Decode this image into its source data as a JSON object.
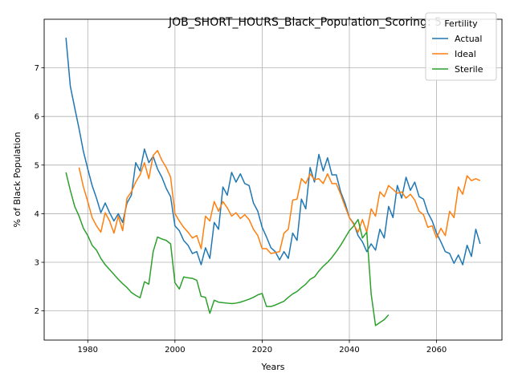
{
  "chart_data": {
    "type": "line",
    "title": "JOB_SHORT_HOURS_Black_Population_Scoring: 5",
    "xlabel": "Years",
    "ylabel": "% of Black Population",
    "xlim": [
      1970,
      2075
    ],
    "ylim": [
      1.4,
      8.0
    ],
    "xticks": [
      1980,
      2000,
      2020,
      2040,
      2060
    ],
    "yticks": [
      2,
      3,
      4,
      5,
      6,
      7
    ],
    "grid": true,
    "legend": {
      "title": "Fertility",
      "placement": "top-right"
    },
    "series": [
      {
        "name": "Actual",
        "color": "#1f77b4",
        "points": [
          [
            1975,
            7.62
          ],
          [
            1976,
            6.62
          ],
          [
            1977,
            6.18
          ],
          [
            1978,
            5.75
          ],
          [
            1979,
            5.28
          ],
          [
            1980,
            4.92
          ],
          [
            1981,
            4.58
          ],
          [
            1982,
            4.32
          ],
          [
            1983,
            4.02
          ],
          [
            1984,
            4.22
          ],
          [
            1985,
            4.02
          ],
          [
            1986,
            3.85
          ],
          [
            1987,
            4.0
          ],
          [
            1988,
            3.82
          ],
          [
            1989,
            4.22
          ],
          [
            1990,
            4.38
          ],
          [
            1991,
            5.05
          ],
          [
            1992,
            4.88
          ],
          [
            1993,
            5.33
          ],
          [
            1994,
            5.05
          ],
          [
            1995,
            5.18
          ],
          [
            1996,
            4.92
          ],
          [
            1997,
            4.75
          ],
          [
            1998,
            4.52
          ],
          [
            1999,
            4.35
          ],
          [
            2000,
            3.75
          ],
          [
            2001,
            3.65
          ],
          [
            2002,
            3.45
          ],
          [
            2003,
            3.35
          ],
          [
            2004,
            3.18
          ],
          [
            2005,
            3.22
          ],
          [
            2006,
            2.95
          ],
          [
            2007,
            3.3
          ],
          [
            2008,
            3.08
          ],
          [
            2009,
            3.82
          ],
          [
            2010,
            3.68
          ],
          [
            2011,
            4.55
          ],
          [
            2012,
            4.38
          ],
          [
            2013,
            4.85
          ],
          [
            2014,
            4.65
          ],
          [
            2015,
            4.82
          ],
          [
            2016,
            4.62
          ],
          [
            2017,
            4.58
          ],
          [
            2018,
            4.22
          ],
          [
            2019,
            4.05
          ],
          [
            2020,
            3.72
          ],
          [
            2021,
            3.52
          ],
          [
            2022,
            3.3
          ],
          [
            2023,
            3.22
          ],
          [
            2024,
            3.05
          ],
          [
            2025,
            3.22
          ],
          [
            2026,
            3.08
          ],
          [
            2027,
            3.6
          ],
          [
            2028,
            3.45
          ],
          [
            2029,
            4.3
          ],
          [
            2030,
            4.1
          ],
          [
            2031,
            4.95
          ],
          [
            2032,
            4.65
          ],
          [
            2033,
            5.22
          ],
          [
            2034,
            4.88
          ],
          [
            2035,
            5.15
          ],
          [
            2036,
            4.8
          ],
          [
            2037,
            4.8
          ],
          [
            2038,
            4.45
          ],
          [
            2039,
            4.22
          ],
          [
            2040,
            3.92
          ],
          [
            2041,
            3.8
          ],
          [
            2042,
            3.55
          ],
          [
            2043,
            3.42
          ],
          [
            2044,
            3.22
          ],
          [
            2045,
            3.38
          ],
          [
            2046,
            3.25
          ],
          [
            2047,
            3.68
          ],
          [
            2048,
            3.5
          ],
          [
            2049,
            4.15
          ],
          [
            2050,
            3.92
          ],
          [
            2051,
            4.58
          ],
          [
            2052,
            4.32
          ],
          [
            2053,
            4.75
          ],
          [
            2054,
            4.48
          ],
          [
            2055,
            4.65
          ],
          [
            2056,
            4.35
          ],
          [
            2057,
            4.3
          ],
          [
            2058,
            4.02
          ],
          [
            2059,
            3.85
          ],
          [
            2060,
            3.6
          ],
          [
            2061,
            3.42
          ],
          [
            2062,
            3.22
          ],
          [
            2063,
            3.18
          ],
          [
            2064,
            2.98
          ],
          [
            2065,
            3.15
          ],
          [
            2066,
            2.95
          ],
          [
            2067,
            3.35
          ],
          [
            2068,
            3.12
          ],
          [
            2069,
            3.68
          ],
          [
            2070,
            3.38
          ]
        ]
      },
      {
        "name": "Ideal",
        "color": "#ff7f0e",
        "points": [
          [
            1978,
            4.95
          ],
          [
            1979,
            4.55
          ],
          [
            1980,
            4.25
          ],
          [
            1981,
            3.92
          ],
          [
            1982,
            3.75
          ],
          [
            1983,
            3.62
          ],
          [
            1984,
            4.02
          ],
          [
            1985,
            3.85
          ],
          [
            1986,
            3.6
          ],
          [
            1987,
            3.95
          ],
          [
            1988,
            3.65
          ],
          [
            1989,
            4.32
          ],
          [
            1990,
            4.45
          ],
          [
            1991,
            4.65
          ],
          [
            1992,
            4.8
          ],
          [
            1993,
            5.05
          ],
          [
            1994,
            4.72
          ],
          [
            1995,
            5.2
          ],
          [
            1996,
            5.3
          ],
          [
            1997,
            5.1
          ],
          [
            1998,
            4.95
          ],
          [
            1999,
            4.75
          ],
          [
            2000,
            4.0
          ],
          [
            2001,
            3.85
          ],
          [
            2002,
            3.72
          ],
          [
            2003,
            3.62
          ],
          [
            2004,
            3.5
          ],
          [
            2005,
            3.55
          ],
          [
            2006,
            3.28
          ],
          [
            2007,
            3.95
          ],
          [
            2008,
            3.85
          ],
          [
            2009,
            4.25
          ],
          [
            2010,
            4.05
          ],
          [
            2011,
            4.25
          ],
          [
            2012,
            4.12
          ],
          [
            2013,
            3.95
          ],
          [
            2014,
            4.02
          ],
          [
            2015,
            3.9
          ],
          [
            2016,
            3.98
          ],
          [
            2017,
            3.88
          ],
          [
            2018,
            3.68
          ],
          [
            2019,
            3.55
          ],
          [
            2020,
            3.28
          ],
          [
            2021,
            3.28
          ],
          [
            2022,
            3.18
          ],
          [
            2023,
            3.2
          ],
          [
            2024,
            3.22
          ],
          [
            2025,
            3.6
          ],
          [
            2026,
            3.68
          ],
          [
            2027,
            4.28
          ],
          [
            2028,
            4.3
          ],
          [
            2029,
            4.72
          ],
          [
            2030,
            4.62
          ],
          [
            2031,
            4.82
          ],
          [
            2032,
            4.7
          ],
          [
            2033,
            4.72
          ],
          [
            2034,
            4.62
          ],
          [
            2035,
            4.82
          ],
          [
            2036,
            4.62
          ],
          [
            2037,
            4.62
          ],
          [
            2038,
            4.4
          ],
          [
            2039,
            4.15
          ],
          [
            2040,
            3.92
          ],
          [
            2041,
            3.78
          ],
          [
            2042,
            3.62
          ],
          [
            2043,
            3.88
          ],
          [
            2044,
            3.62
          ],
          [
            2045,
            4.1
          ],
          [
            2046,
            3.95
          ],
          [
            2047,
            4.45
          ],
          [
            2048,
            4.35
          ],
          [
            2049,
            4.58
          ],
          [
            2050,
            4.5
          ],
          [
            2051,
            4.42
          ],
          [
            2052,
            4.45
          ],
          [
            2053,
            4.32
          ],
          [
            2054,
            4.4
          ],
          [
            2055,
            4.28
          ],
          [
            2056,
            4.05
          ],
          [
            2057,
            3.98
          ],
          [
            2058,
            3.72
          ],
          [
            2059,
            3.75
          ],
          [
            2060,
            3.5
          ],
          [
            2061,
            3.7
          ],
          [
            2062,
            3.55
          ],
          [
            2063,
            4.05
          ],
          [
            2064,
            3.92
          ],
          [
            2065,
            4.55
          ],
          [
            2066,
            4.4
          ],
          [
            2067,
            4.78
          ],
          [
            2068,
            4.68
          ],
          [
            2069,
            4.72
          ],
          [
            2070,
            4.68
          ]
        ]
      },
      {
        "name": "Sterile",
        "color": "#2ca02c",
        "points": [
          [
            1975,
            4.85
          ],
          [
            1976,
            4.48
          ],
          [
            1977,
            4.15
          ],
          [
            1978,
            3.95
          ],
          [
            1979,
            3.7
          ],
          [
            1980,
            3.55
          ],
          [
            1981,
            3.35
          ],
          [
            1982,
            3.25
          ],
          [
            1983,
            3.08
          ],
          [
            1984,
            2.95
          ],
          [
            1985,
            2.85
          ],
          [
            1986,
            2.75
          ],
          [
            1987,
            2.65
          ],
          [
            1988,
            2.56
          ],
          [
            1989,
            2.48
          ],
          [
            1990,
            2.38
          ],
          [
            1991,
            2.32
          ],
          [
            1992,
            2.27
          ],
          [
            1993,
            2.6
          ],
          [
            1994,
            2.55
          ],
          [
            1995,
            3.22
          ],
          [
            1996,
            3.52
          ],
          [
            1997,
            3.48
          ],
          [
            1998,
            3.45
          ],
          [
            1999,
            3.38
          ],
          [
            2000,
            2.58
          ],
          [
            2001,
            2.45
          ],
          [
            2002,
            2.7
          ],
          [
            2003,
            2.68
          ],
          [
            2004,
            2.67
          ],
          [
            2005,
            2.63
          ],
          [
            2006,
            2.3
          ],
          [
            2007,
            2.28
          ],
          [
            2008,
            1.95
          ],
          [
            2009,
            2.22
          ],
          [
            2010,
            2.18
          ],
          [
            2011,
            2.17
          ],
          [
            2012,
            2.16
          ],
          [
            2013,
            2.15
          ],
          [
            2014,
            2.16
          ],
          [
            2015,
            2.18
          ],
          [
            2016,
            2.21
          ],
          [
            2017,
            2.24
          ],
          [
            2018,
            2.28
          ],
          [
            2019,
            2.33
          ],
          [
            2020,
            2.36
          ],
          [
            2021,
            2.09
          ],
          [
            2022,
            2.09
          ],
          [
            2023,
            2.12
          ],
          [
            2024,
            2.16
          ],
          [
            2025,
            2.2
          ],
          [
            2026,
            2.28
          ],
          [
            2027,
            2.35
          ],
          [
            2028,
            2.4
          ],
          [
            2029,
            2.48
          ],
          [
            2030,
            2.55
          ],
          [
            2031,
            2.65
          ],
          [
            2032,
            2.7
          ],
          [
            2033,
            2.82
          ],
          [
            2034,
            2.92
          ],
          [
            2035,
            3.0
          ],
          [
            2036,
            3.1
          ],
          [
            2037,
            3.22
          ],
          [
            2038,
            3.35
          ],
          [
            2039,
            3.5
          ],
          [
            2040,
            3.65
          ],
          [
            2041,
            3.75
          ],
          [
            2042,
            3.88
          ],
          [
            2043,
            3.5
          ],
          [
            2044,
            3.62
          ],
          [
            2045,
            2.35
          ],
          [
            2046,
            1.7
          ],
          [
            2047,
            1.76
          ],
          [
            2048,
            1.82
          ],
          [
            2049,
            1.92
          ]
        ]
      }
    ]
  }
}
